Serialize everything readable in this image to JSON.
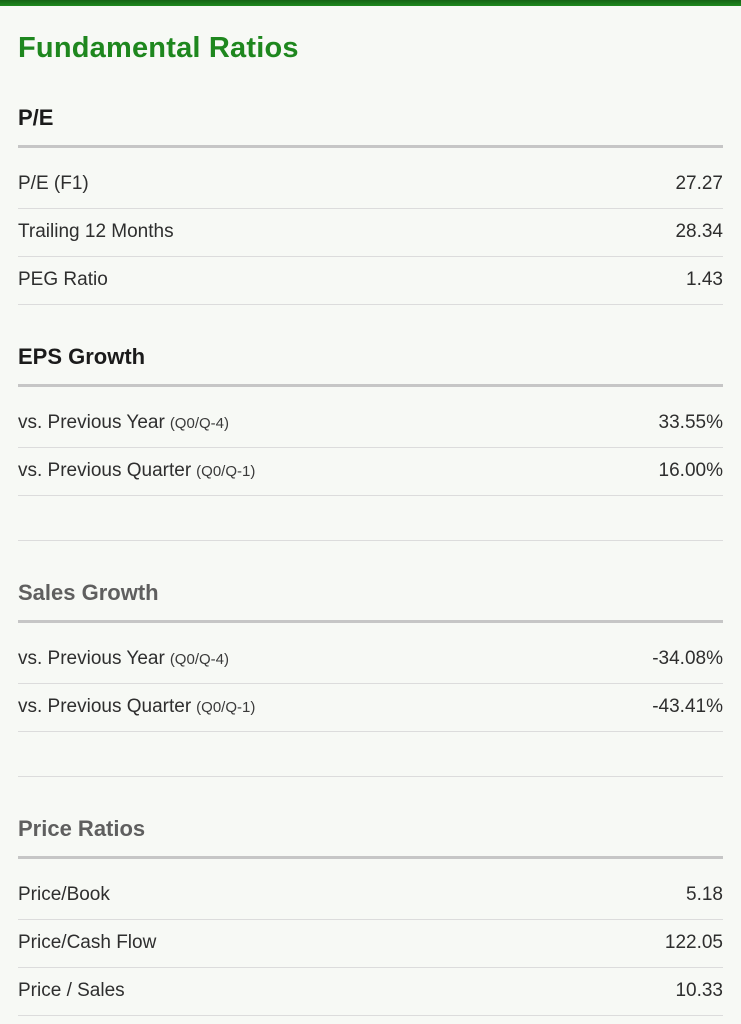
{
  "page": {
    "title": "Fundamental Ratios",
    "accent_color": "#1e871e",
    "background_color": "#f7f9f5",
    "divider_thin_color": "#dcdcdc",
    "divider_thick_color": "#c6c6c6"
  },
  "sections": [
    {
      "id": "pe",
      "title": "P/E",
      "title_color": "#1b1b1b",
      "trailing_spacer": false,
      "rows": [
        {
          "label": "P/E (F1)",
          "sublabel": "",
          "value": "27.27"
        },
        {
          "label": "Trailing 12 Months",
          "sublabel": "",
          "value": "28.34"
        },
        {
          "label": "PEG Ratio",
          "sublabel": "",
          "value": "1.43"
        }
      ]
    },
    {
      "id": "eps-growth",
      "title": "EPS Growth",
      "title_color": "#1b1b1b",
      "trailing_spacer": true,
      "rows": [
        {
          "label": "vs. Previous Year",
          "sublabel": "(Q0/Q-4)",
          "value": "33.55%"
        },
        {
          "label": "vs. Previous Quarter",
          "sublabel": "(Q0/Q-1)",
          "value": "16.00%"
        }
      ]
    },
    {
      "id": "sales-growth",
      "title": "Sales Growth",
      "title_color": "#5f5f5f",
      "trailing_spacer": true,
      "rows": [
        {
          "label": "vs. Previous Year",
          "sublabel": "(Q0/Q-4)",
          "value": "-34.08%"
        },
        {
          "label": "vs. Previous Quarter",
          "sublabel": "(Q0/Q-1)",
          "value": "-43.41%"
        }
      ]
    },
    {
      "id": "price-ratios",
      "title": "Price Ratios",
      "title_color": "#5f5f5f",
      "trailing_spacer": false,
      "rows": [
        {
          "label": "Price/Book",
          "sublabel": "",
          "value": "5.18"
        },
        {
          "label": "Price/Cash Flow",
          "sublabel": "",
          "value": "122.05"
        },
        {
          "label": "Price / Sales",
          "sublabel": "",
          "value": "10.33"
        }
      ]
    }
  ]
}
